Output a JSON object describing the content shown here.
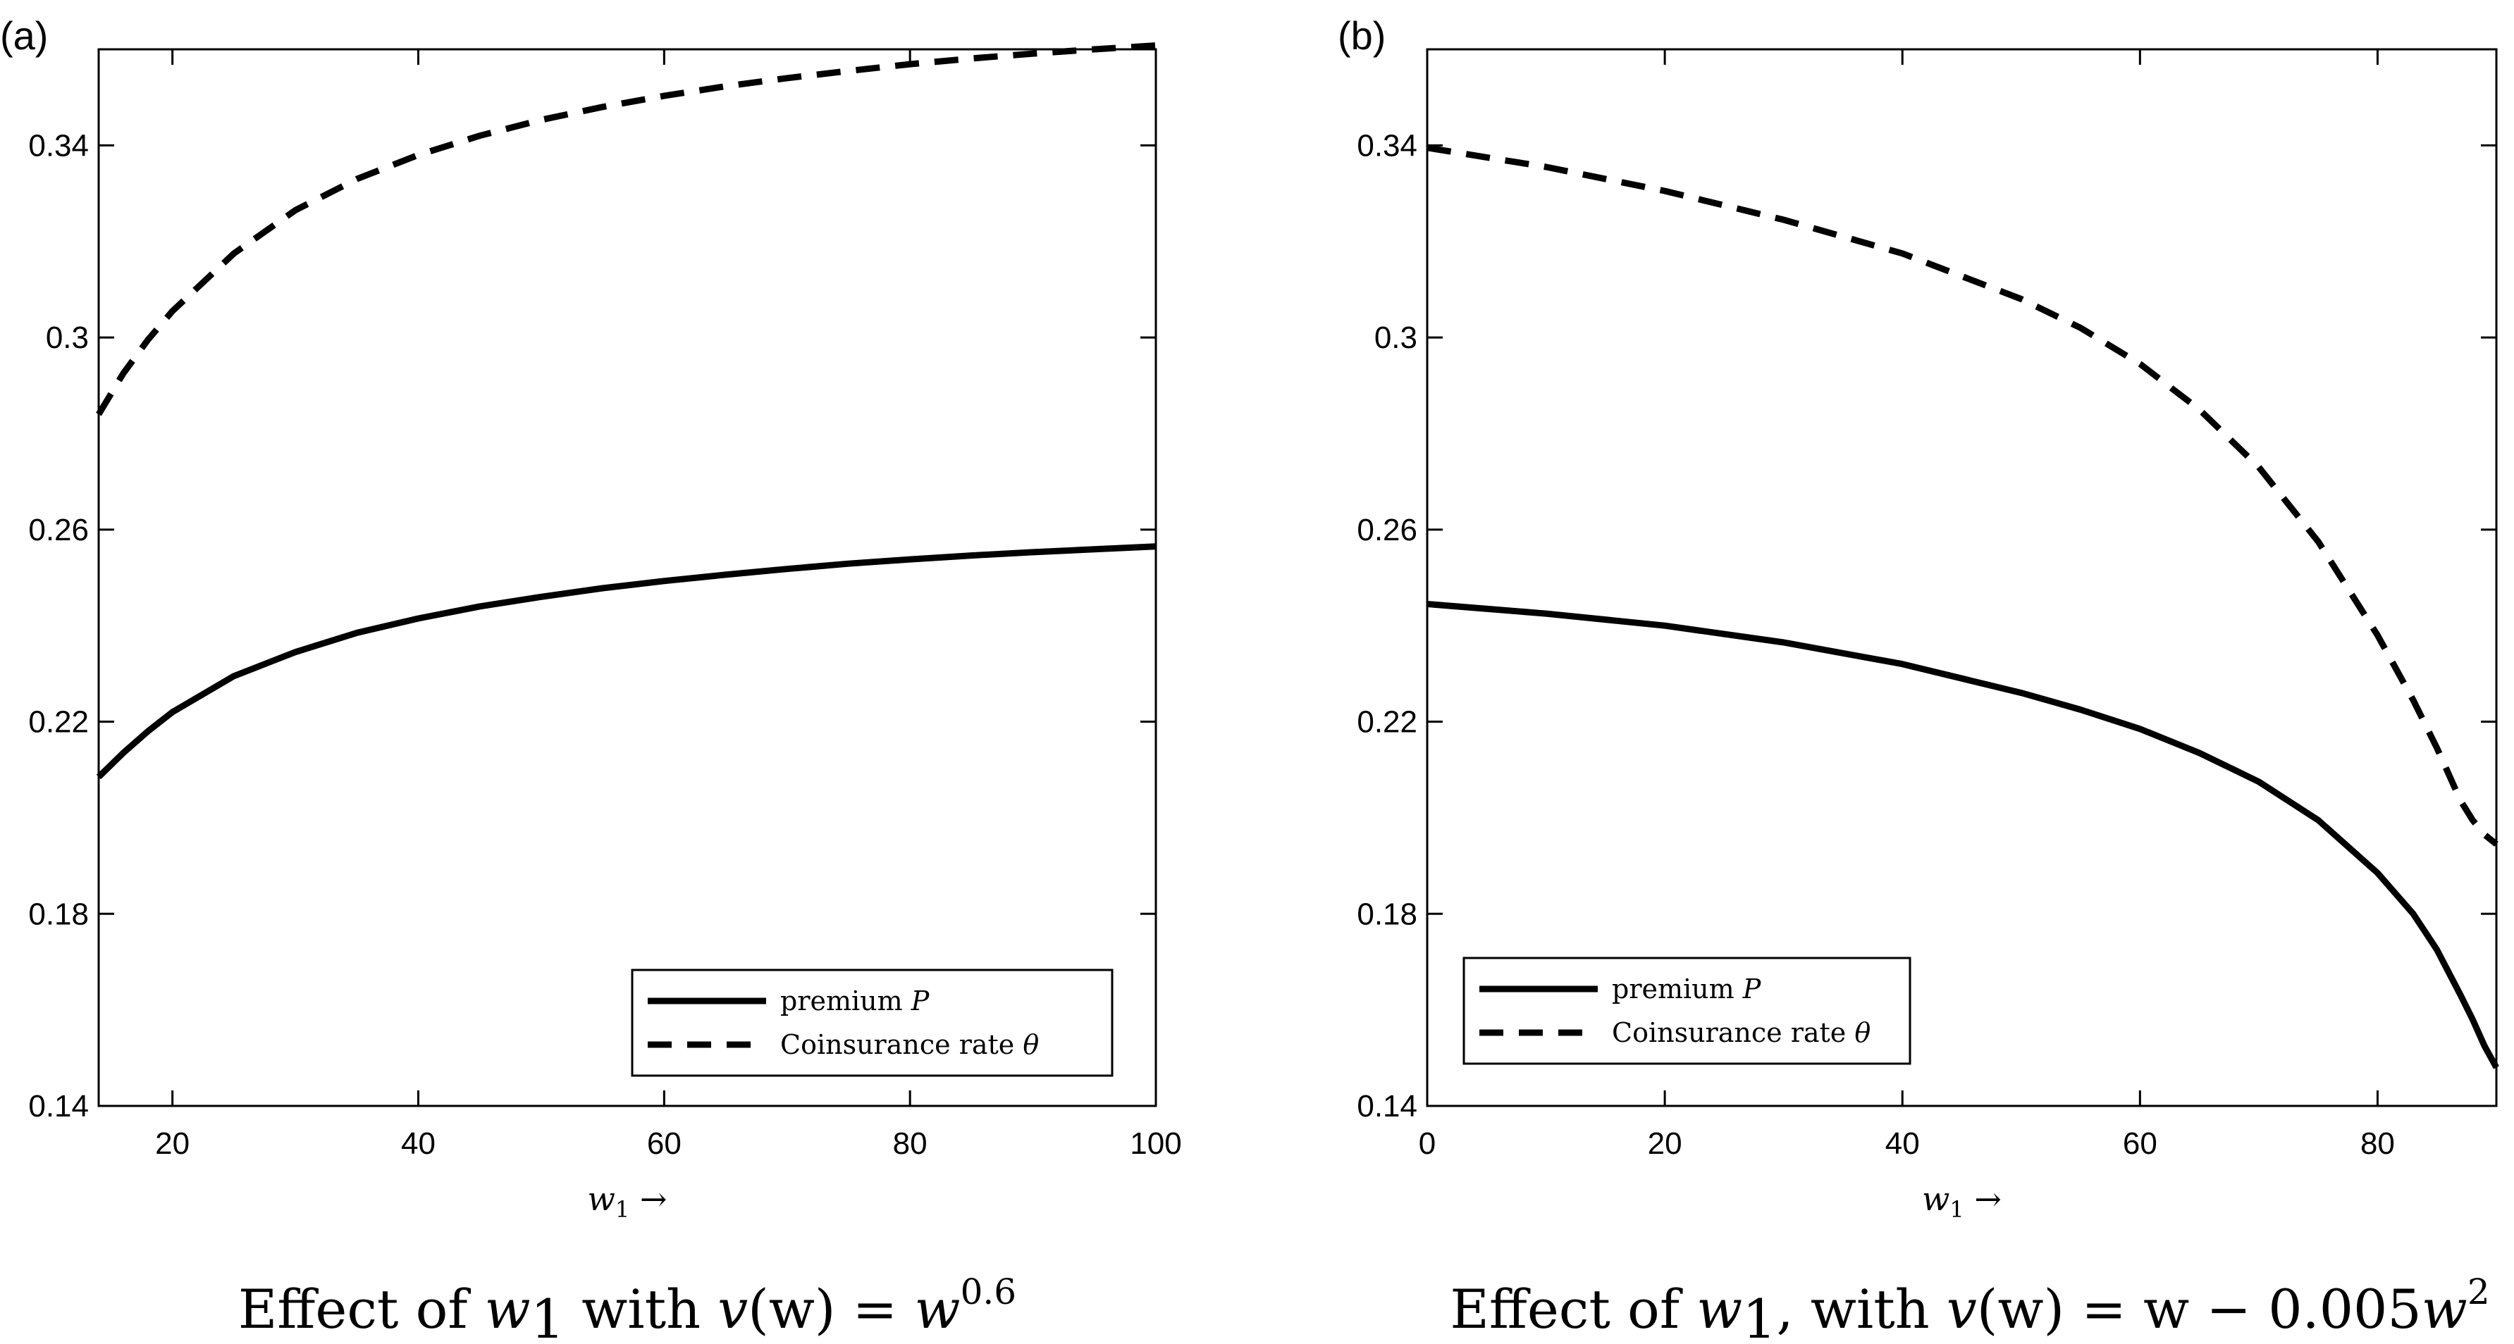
{
  "chart_data": [
    {
      "type": "line",
      "panel_label": "(a)",
      "xlabel": {
        "var": "w",
        "sub": "1",
        "arrow": "→"
      },
      "ylabel": "",
      "xlim": [
        14,
        100
      ],
      "ylim": [
        0.14,
        0.36
      ],
      "xticks": [
        20,
        40,
        60,
        80,
        100
      ],
      "yticks": [
        0.14,
        0.18,
        0.22,
        0.26,
        0.3,
        0.34
      ],
      "ytick_labels": [
        "0.14",
        "0.18",
        "0.22",
        "0.26",
        "0.3",
        "0.34"
      ],
      "xtick_labels": [
        "20",
        "40",
        "60",
        "80",
        "100"
      ],
      "legend": {
        "position": "bottom-right",
        "entries": [
          {
            "text": "premium ",
            "var": "P",
            "style": "solid"
          },
          {
            "text": "Coinsurance rate ",
            "var": "θ",
            "style": "dashed"
          }
        ]
      },
      "series": [
        {
          "name": "premium P",
          "style": "solid",
          "x": [
            14,
            16,
            18,
            20,
            25,
            30,
            35,
            40,
            45,
            50,
            55,
            60,
            65,
            70,
            75,
            80,
            85,
            90,
            95,
            100
          ],
          "values": [
            0.2085,
            0.2135,
            0.218,
            0.222,
            0.2295,
            0.2345,
            0.2385,
            0.2415,
            0.244,
            0.246,
            0.2478,
            0.2493,
            0.2506,
            0.2518,
            0.2529,
            0.2538,
            0.2546,
            0.2553,
            0.2559,
            0.2565
          ]
        },
        {
          "name": "Coinsurance rate θ",
          "style": "dashed",
          "x": [
            14,
            16,
            18,
            20,
            25,
            30,
            35,
            40,
            45,
            50,
            55,
            60,
            65,
            70,
            75,
            80,
            85,
            90,
            95,
            100
          ],
          "values": [
            0.284,
            0.2925,
            0.2995,
            0.3055,
            0.3175,
            0.3265,
            0.333,
            0.338,
            0.342,
            0.3453,
            0.348,
            0.3503,
            0.3523,
            0.354,
            0.3555,
            0.3569,
            0.3581,
            0.3591,
            0.36,
            0.3608
          ]
        }
      ],
      "caption": {
        "prefix": "Effect of ",
        "w": "w",
        "w_sub": "1",
        "mid": " with ",
        "func": "v",
        "arg": "(w) = ",
        "rhs": "w",
        "sup": "0.6"
      }
    },
    {
      "type": "line",
      "panel_label": "(b)",
      "xlabel": {
        "var": "w",
        "sub": "1",
        "arrow": "→"
      },
      "ylabel": "",
      "xlim": [
        0,
        90
      ],
      "ylim": [
        0.14,
        0.36
      ],
      "xticks": [
        0,
        20,
        40,
        60,
        80
      ],
      "yticks": [
        0.14,
        0.18,
        0.22,
        0.26,
        0.3,
        0.34
      ],
      "ytick_labels": [
        "0.14",
        "0.18",
        "0.22",
        "0.26",
        "0.3",
        "0.34"
      ],
      "xtick_labels": [
        "0",
        "20",
        "40",
        "60",
        "80"
      ],
      "legend": {
        "position": "bottom-left",
        "entries": [
          {
            "text": "premium ",
            "var": "P",
            "style": "solid"
          },
          {
            "text": "Coinsurance rate ",
            "var": "θ",
            "style": "dashed"
          }
        ]
      },
      "series": [
        {
          "name": "premium P",
          "style": "solid",
          "x": [
            0,
            10,
            20,
            30,
            40,
            50,
            55,
            60,
            65,
            70,
            75,
            80,
            83,
            85,
            87,
            88,
            89,
            90
          ],
          "values": [
            0.2445,
            0.2425,
            0.24,
            0.2365,
            0.232,
            0.226,
            0.2225,
            0.2185,
            0.2135,
            0.2075,
            0.1995,
            0.1885,
            0.18,
            0.1725,
            0.163,
            0.158,
            0.1525,
            0.148
          ]
        },
        {
          "name": "Coinsurance rate θ",
          "style": "dashed",
          "x": [
            0,
            10,
            20,
            30,
            40,
            50,
            55,
            60,
            65,
            70,
            75,
            80,
            83,
            85,
            87,
            88,
            89,
            90
          ],
          "values": [
            0.3395,
            0.3355,
            0.3305,
            0.3245,
            0.3175,
            0.308,
            0.302,
            0.2945,
            0.285,
            0.273,
            0.2575,
            0.238,
            0.2245,
            0.2145,
            0.2035,
            0.1995,
            0.1965,
            0.1945
          ]
        }
      ],
      "caption": {
        "prefix": "Effect of ",
        "w": "w",
        "w_sub": "1",
        "mid": ", with ",
        "func": "v",
        "arg": "(w) = w − 0.005",
        "rhs": "w",
        "sup": "2"
      }
    }
  ]
}
